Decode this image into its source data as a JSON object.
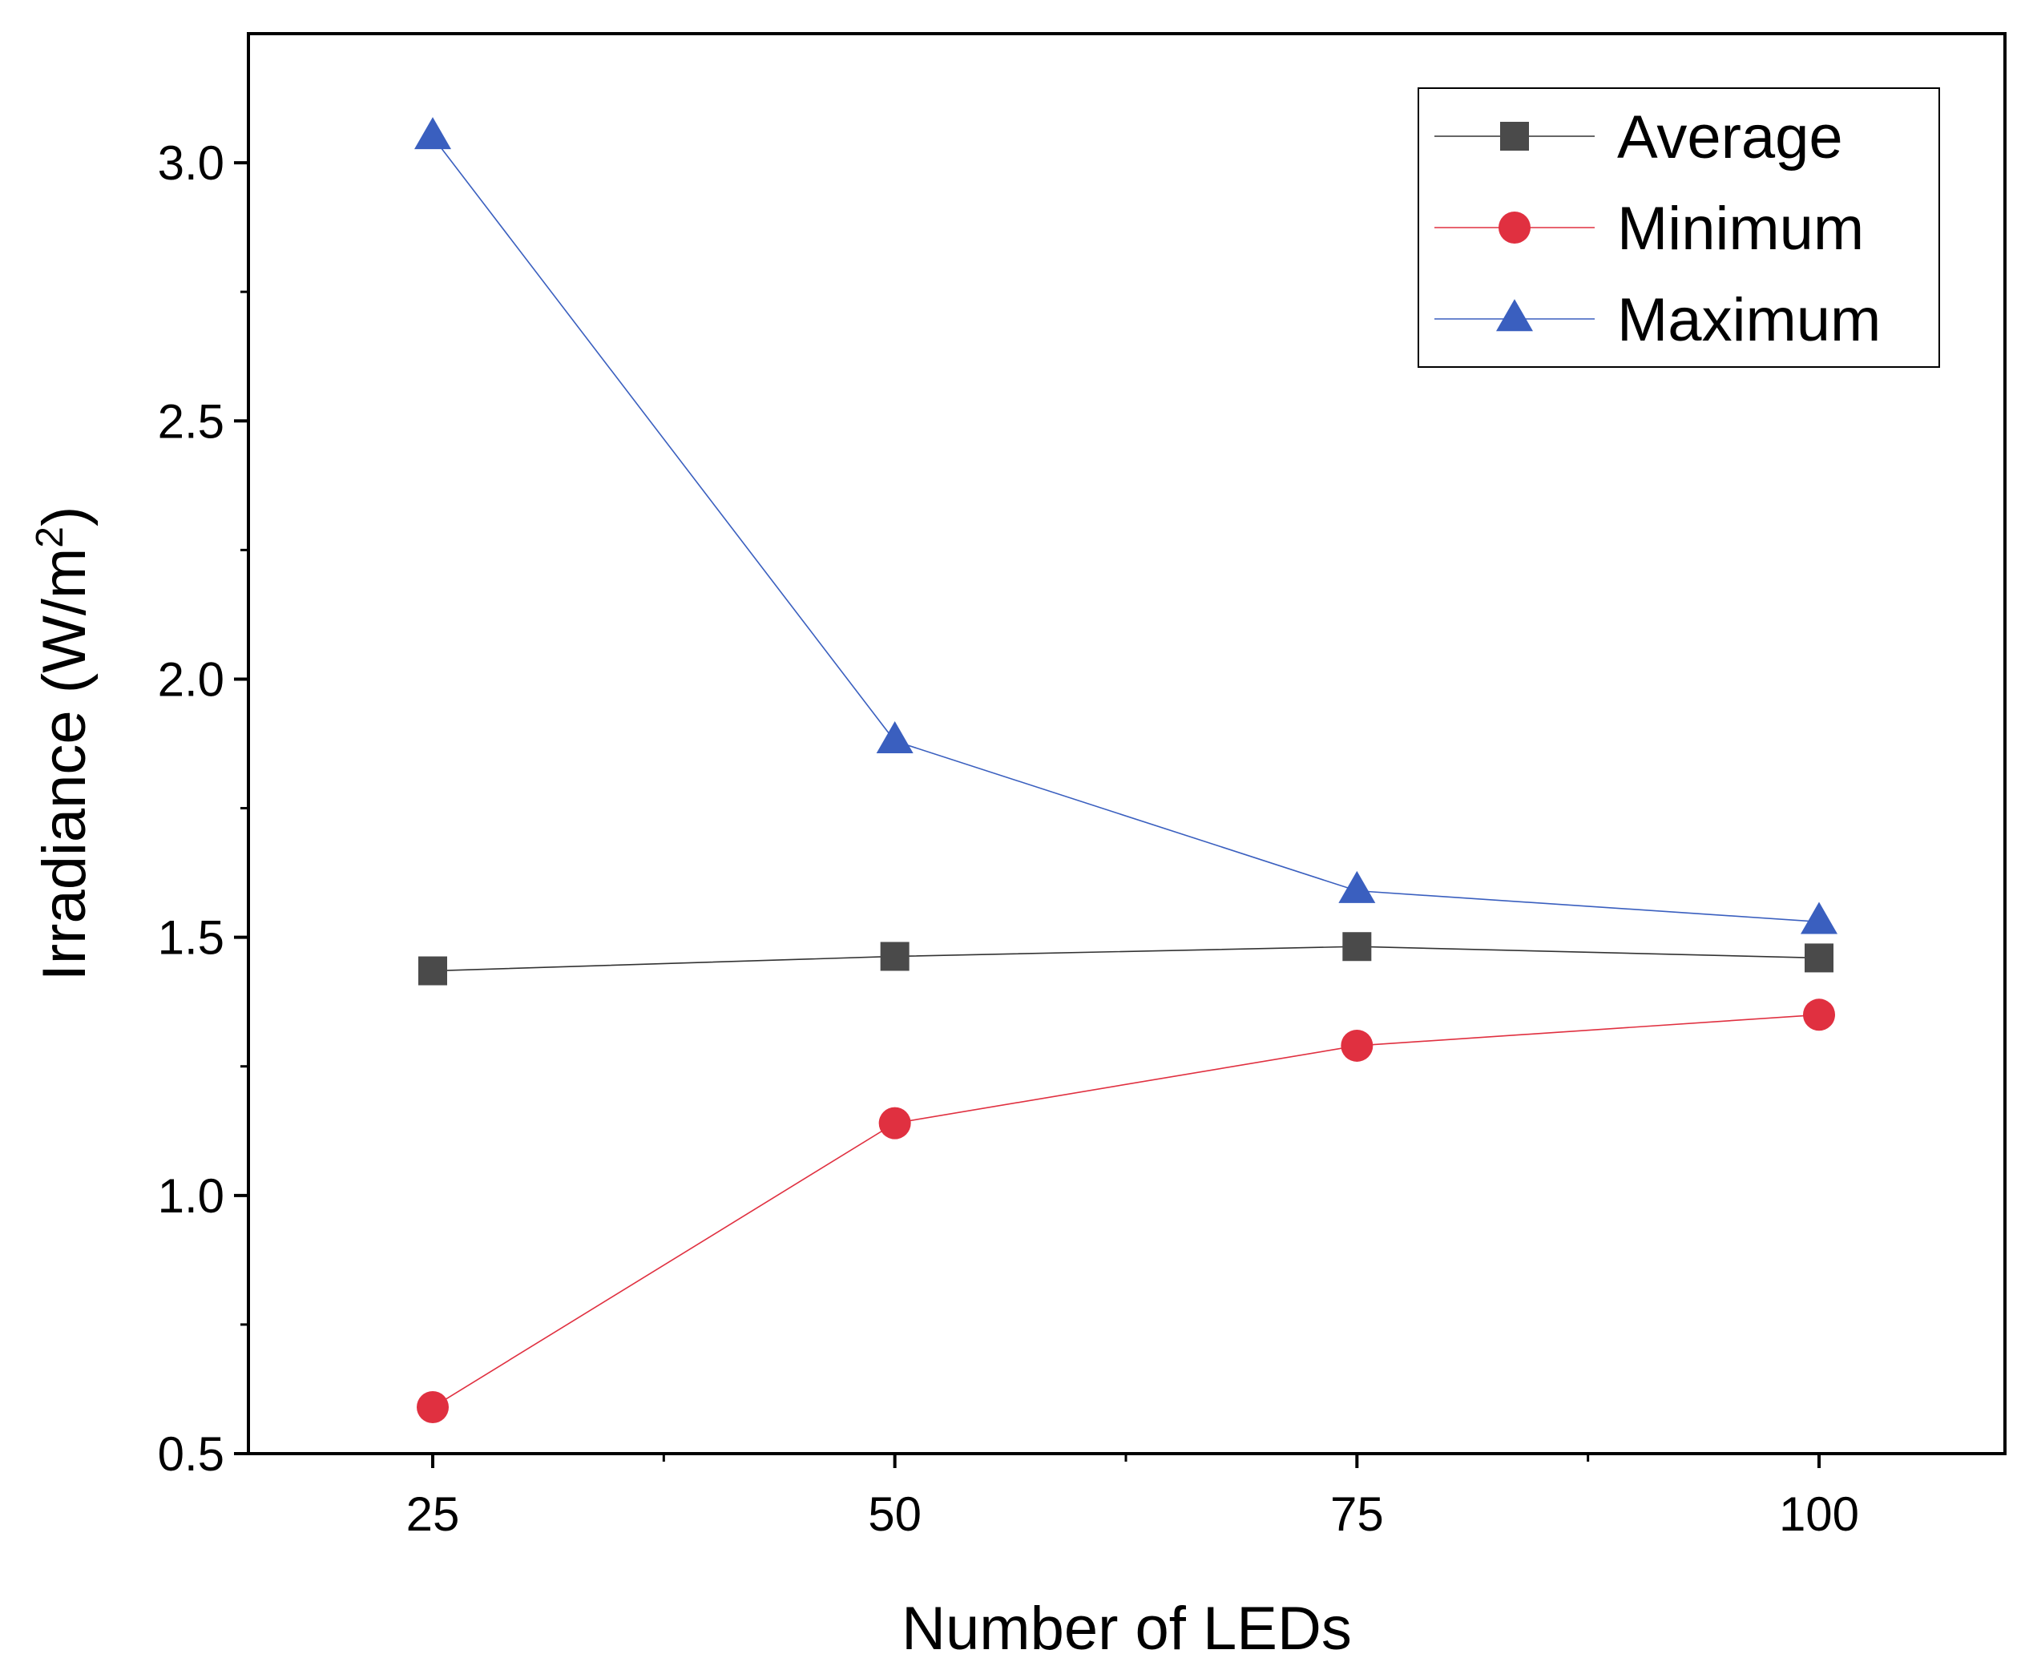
{
  "chart_data": {
    "type": "line",
    "x": [
      25,
      50,
      75,
      100
    ],
    "series": [
      {
        "name": "Average",
        "marker": "square",
        "color": "#4a4a4a",
        "line_color": "#333333",
        "values": [
          1.435,
          1.463,
          1.482,
          1.46
        ]
      },
      {
        "name": "Minimum",
        "marker": "circle",
        "color": "#e03040",
        "line_color": "#e03040",
        "values": [
          0.59,
          1.14,
          1.29,
          1.35
        ]
      },
      {
        "name": "Maximum",
        "marker": "triangle",
        "color": "#3a5fbf",
        "line_color": "#3a5fbf",
        "values": [
          3.05,
          1.88,
          1.59,
          1.53
        ]
      }
    ],
    "xlabel": "Number of LEDs",
    "ylabel": "Irradiance (W/m",
    "ylabel_superscript": "2",
    "ylabel_suffix": ")",
    "xlim": [
      15,
      110
    ],
    "ylim": [
      0.5,
      3.25
    ],
    "xticks": [
      25,
      50,
      75,
      100
    ],
    "xtick_labels": [
      "25",
      "50",
      "75",
      "100"
    ],
    "yticks": [
      0.5,
      1.0,
      1.5,
      2.0,
      2.5,
      3.0
    ],
    "ytick_labels": [
      "0.5",
      "1.0",
      "1.5",
      "2.0",
      "2.5",
      "3.0"
    ],
    "grid": false,
    "legend_position": "top-right"
  }
}
